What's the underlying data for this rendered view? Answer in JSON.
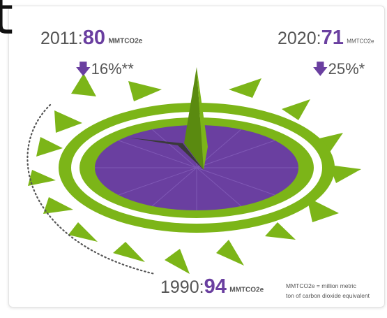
{
  "stats": {
    "y2011": {
      "year": "2011:",
      "value": "80",
      "unit": "MMTCO2e",
      "change": "16%**"
    },
    "y2020": {
      "year": "2020:",
      "value": "71",
      "unit": "MMTCO2e",
      "change": "25%*"
    },
    "y1990": {
      "year": "1990:",
      "value": "94",
      "unit": "MMTCO2e"
    }
  },
  "footnote": {
    "line1": "MMTCO2e = million metric",
    "line2": "ton of carbon dioxide equivalent"
  },
  "colors": {
    "green": "#7cb518",
    "purple": "#6a3fa0",
    "shadow": "#3a3a3a",
    "gray_text": "#555555"
  },
  "icons": {
    "down_arrow": "down-arrow-icon",
    "sundial": "sundial-illustration"
  }
}
